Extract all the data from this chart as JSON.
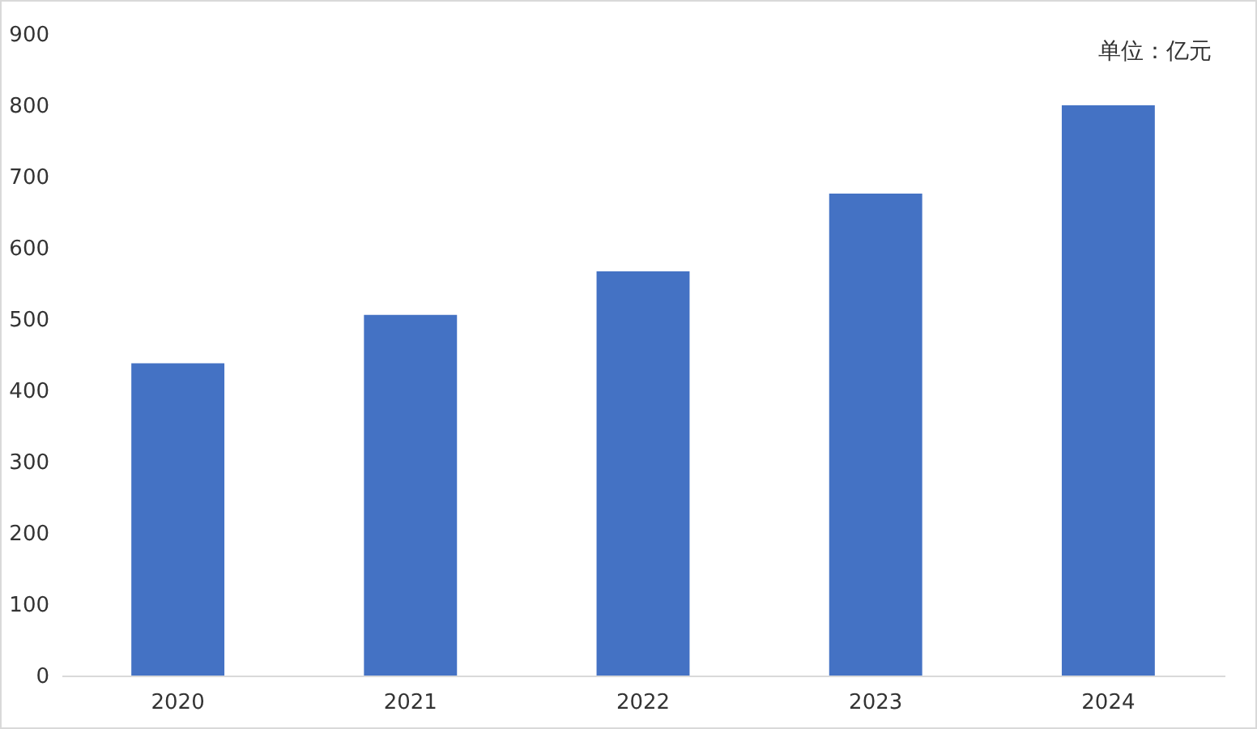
{
  "chart_data": {
    "type": "bar",
    "categories": [
      "2020",
      "2021",
      "2022",
      "2023",
      "2024"
    ],
    "values": [
      438,
      506,
      567,
      676,
      800
    ],
    "color": "#4472c4",
    "ylim": [
      0,
      900
    ],
    "yticks": [
      0,
      100,
      200,
      300,
      400,
      500,
      600,
      700,
      800,
      900
    ],
    "annotations": [
      "单位：亿元"
    ]
  }
}
